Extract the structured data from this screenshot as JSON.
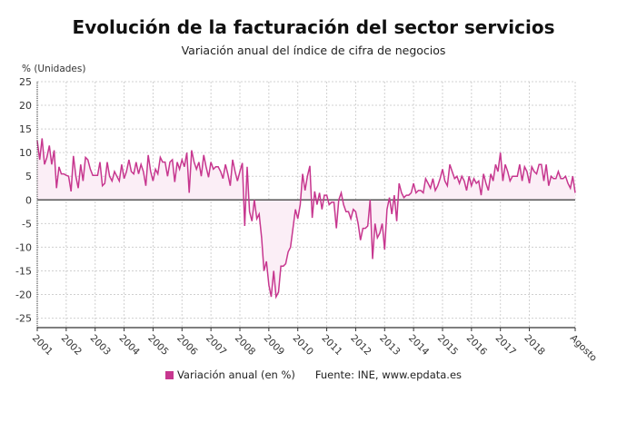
{
  "title": "Evolución de la facturación del sector servicios",
  "subtitle": "Variación anual del índice de cifra de negocios",
  "colors": {
    "line": "#c7378f",
    "fill": "#fbeef6",
    "zero_line": "#555555",
    "grid": "#d0d0d0"
  },
  "legend": {
    "label": "Variación anual (en %)",
    "source": "Fuente: INE, www.epdata.es"
  },
  "chart_data": {
    "type": "area",
    "ylabel": "% (Unidades)",
    "ylim": [
      -27,
      25
    ],
    "yticks": [
      25,
      20,
      15,
      10,
      5,
      0,
      -5,
      -10,
      -15,
      -20,
      -25
    ],
    "xticks": [
      "2001",
      "2002",
      "2003",
      "2004",
      "2005",
      "2006",
      "2007",
      "2008",
      "2009",
      "2010",
      "2011",
      "2012",
      "2013",
      "2014",
      "2015",
      "2016",
      "2017",
      "2018",
      "Agosto"
    ],
    "x_start": "2001-01",
    "x_end": "2019-08",
    "grid": true,
    "legend_position": "bottom",
    "series": [
      {
        "name": "Variación anual (en %)",
        "values": [
          12.5,
          8.5,
          13,
          7.5,
          9,
          11.5,
          7.5,
          10.5,
          2.5,
          7,
          5.5,
          5.5,
          5.2,
          5,
          1.8,
          9.3,
          5,
          2.5,
          7.5,
          4,
          9,
          8.5,
          6.5,
          5.2,
          5.2,
          5.2,
          8,
          3,
          3.5,
          8,
          5,
          4,
          6,
          5,
          4,
          7.5,
          4.5,
          6,
          8.5,
          6,
          5.5,
          8,
          5.5,
          7.5,
          6,
          3,
          9.5,
          6,
          4,
          6.5,
          5.5,
          9,
          8,
          8,
          5,
          8,
          8.5,
          3.8,
          8,
          6.5,
          8.5,
          7,
          10,
          1.5,
          10.5,
          8,
          6.5,
          8,
          5,
          9.5,
          7,
          4.8,
          8,
          6.5,
          7,
          7,
          6,
          4.5,
          7.5,
          5.5,
          3,
          8.5,
          6,
          4,
          6,
          7.8,
          -5.5,
          7,
          -2.5,
          -4.5,
          0,
          -4,
          -3,
          -8,
          -15,
          -13,
          -18,
          -20.5,
          -15,
          -20.5,
          -19.5,
          -14,
          -14,
          -13.5,
          -11,
          -10,
          -6,
          -2,
          -4,
          -1,
          5.5,
          2,
          5,
          7.2,
          -3.8,
          1.8,
          -1,
          1.5,
          -2,
          1,
          1,
          -1,
          -0.5,
          -0.5,
          -6,
          0,
          1.5,
          -1,
          -2.5,
          -2.5,
          -4,
          -2,
          -2.5,
          -5,
          -8.5,
          -6,
          -6,
          -5.5,
          0,
          -12.5,
          -5,
          -8,
          -7,
          -5,
          -10.5,
          -2,
          0.5,
          -3,
          1,
          -4.5,
          3.5,
          1.5,
          0.5,
          1,
          1,
          1.5,
          3.5,
          1.5,
          2,
          2,
          1.5,
          4.5,
          3.5,
          2.5,
          4.5,
          2,
          3,
          4.5,
          6.5,
          4,
          3,
          7.5,
          6,
          4.5,
          5,
          3.5,
          5,
          4,
          2,
          5,
          3,
          4.5,
          3.5,
          4,
          1,
          5.5,
          3.5,
          2,
          5.5,
          4,
          7.5,
          6,
          10,
          4,
          7.5,
          6,
          4,
          5,
          5,
          5,
          7.5,
          4,
          7,
          6,
          3.5,
          7,
          6,
          5.5,
          7.5,
          7.5,
          4,
          7.5,
          3,
          5,
          4.5,
          4.5,
          6,
          4.5,
          4.5,
          5,
          3.5,
          2.5,
          5,
          1.5
        ]
      }
    ]
  }
}
